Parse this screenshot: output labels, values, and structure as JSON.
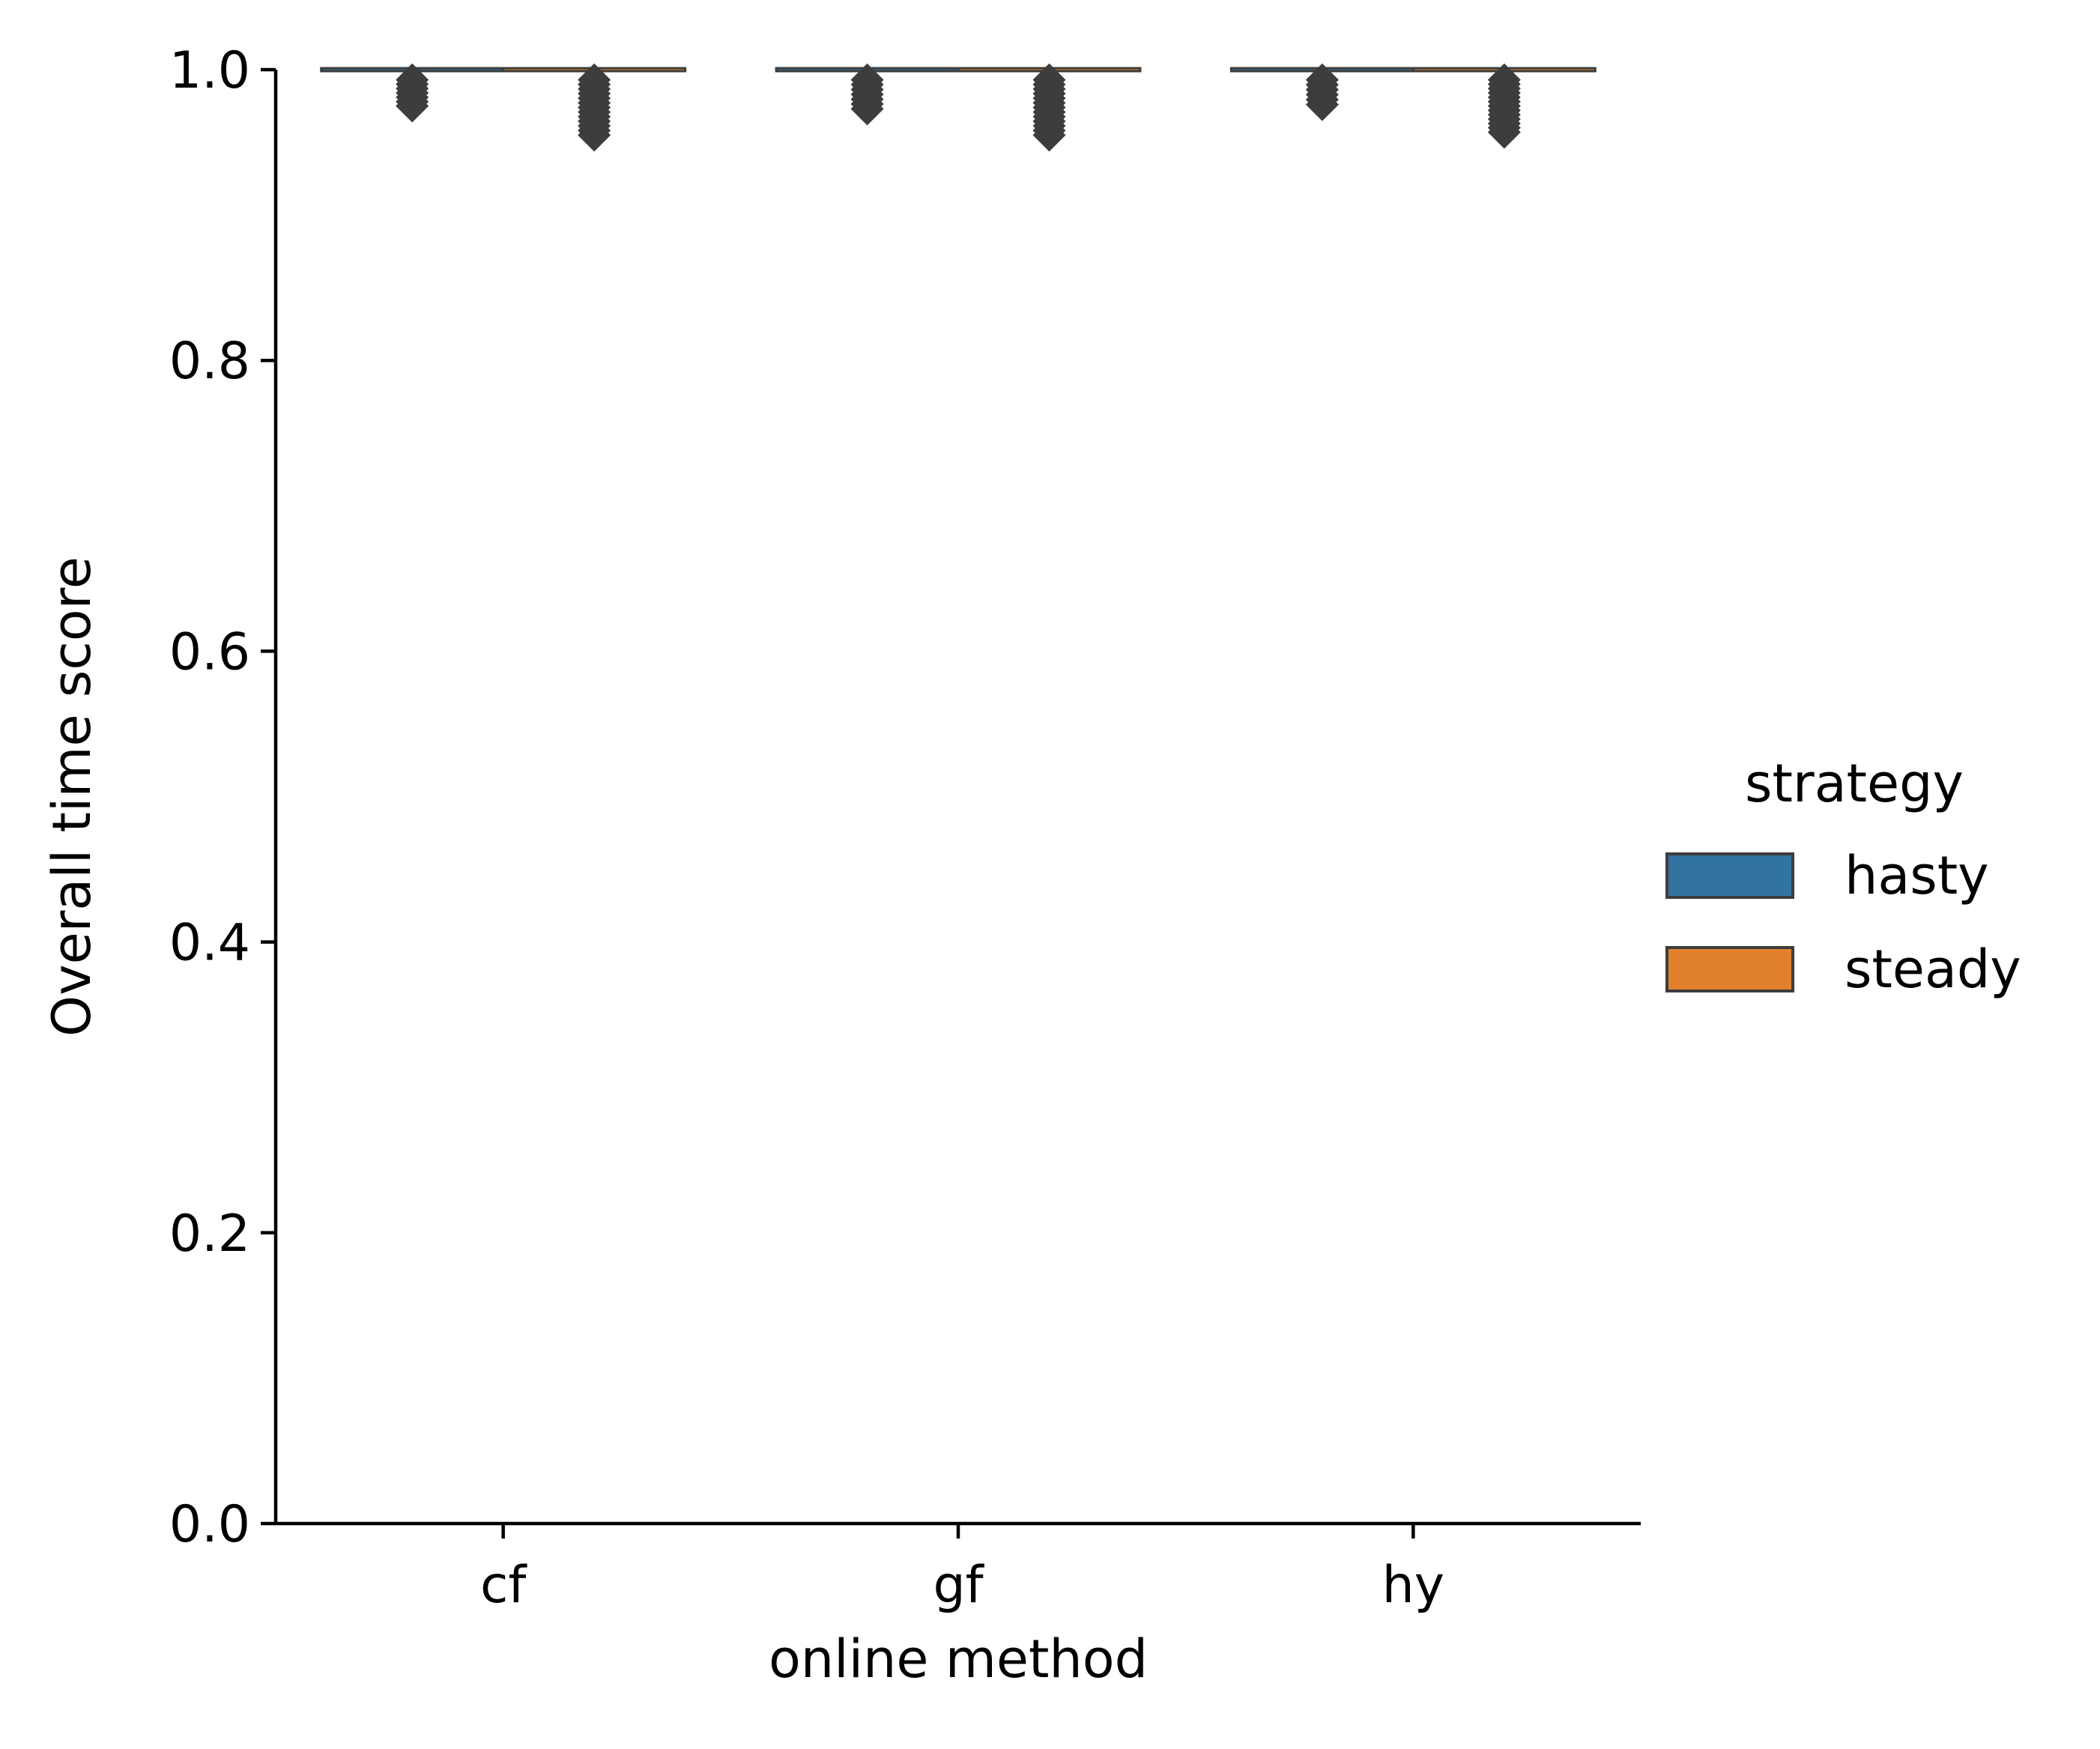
{
  "chart_data": {
    "type": "boxen",
    "title": "",
    "xlabel": "online method",
    "ylabel": "Overall time score",
    "categories": [
      "cf",
      "gf",
      "hy"
    ],
    "ylim": [
      0.0,
      1.0
    ],
    "yticks": [
      "0.0",
      "0.2",
      "0.4",
      "0.6",
      "0.8",
      "1.0"
    ],
    "grid": false,
    "legend": {
      "title": "strategy",
      "placement": "right",
      "entries": [
        {
          "label": "hasty",
          "color": "#3274a1"
        },
        {
          "label": "steady",
          "color": "#e1812c"
        }
      ]
    },
    "series": [
      {
        "name": "hasty",
        "color": "#3274a1",
        "box_top": 1.0,
        "outlier_low": [
          0.975,
          0.973,
          0.976
        ],
        "outlier_high": [
          0.993,
          0.993,
          0.993
        ]
      },
      {
        "name": "steady",
        "color": "#e1812c",
        "box_top": 1.0,
        "outlier_low": [
          0.955,
          0.955,
          0.957
        ],
        "outlier_high": [
          0.993,
          0.993,
          0.993
        ]
      }
    ]
  },
  "style": {
    "outlier_color": "#3d3d3d",
    "axis_color": "#000000"
  }
}
